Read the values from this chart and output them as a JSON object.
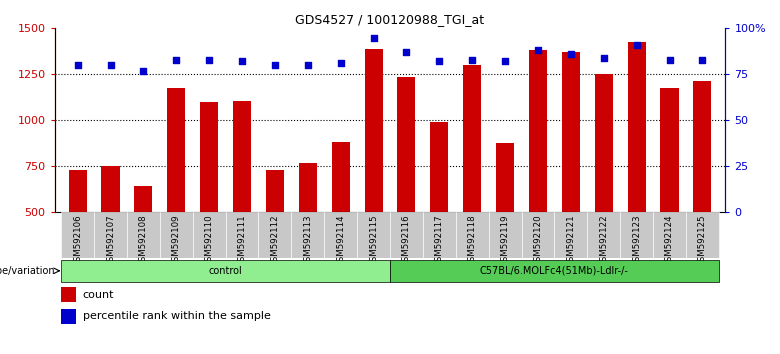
{
  "title": "GDS4527 / 100120988_TGI_at",
  "samples": [
    "GSM592106",
    "GSM592107",
    "GSM592108",
    "GSM592109",
    "GSM592110",
    "GSM592111",
    "GSM592112",
    "GSM592113",
    "GSM592114",
    "GSM592115",
    "GSM592116",
    "GSM592117",
    "GSM592118",
    "GSM592119",
    "GSM592120",
    "GSM592121",
    "GSM592122",
    "GSM592123",
    "GSM592124",
    "GSM592125"
  ],
  "counts": [
    730,
    750,
    645,
    1175,
    1100,
    1105,
    730,
    770,
    880,
    1390,
    1235,
    990,
    1300,
    875,
    1380,
    1370,
    1250,
    1425,
    1175,
    1215
  ],
  "percentile_ranks": [
    80,
    80,
    77,
    83,
    83,
    82,
    80,
    80,
    81,
    95,
    87,
    82,
    83,
    82,
    88,
    86,
    84,
    91,
    83,
    83
  ],
  "groups": [
    {
      "label": "control",
      "start": 0,
      "end": 10,
      "color": "#90EE90"
    },
    {
      "label": "C57BL/6.MOLFc4(51Mb)-Ldlr-/-",
      "start": 10,
      "end": 20,
      "color": "#55CC55"
    }
  ],
  "bar_color": "#CC0000",
  "dot_color": "#0000CC",
  "ylim_left": [
    500,
    1500
  ],
  "ylim_right": [
    0,
    100
  ],
  "yticks_left": [
    500,
    750,
    1000,
    1250,
    1500
  ],
  "yticks_right": [
    0,
    25,
    50,
    75,
    100
  ],
  "ytick_labels_right": [
    "0",
    "25",
    "50",
    "75",
    "100%"
  ],
  "hlines": [
    750,
    1000,
    1250
  ],
  "bar_width": 0.55,
  "xlabel_area_label": "genotype/variation",
  "legend_count_label": "count",
  "legend_percentile_label": "percentile rank within the sample",
  "tick_label_color_left": "#CC0000",
  "tick_label_color_right": "#0000CC",
  "background_color": "#ffffff",
  "tick_bg_color": "#C8C8C8"
}
